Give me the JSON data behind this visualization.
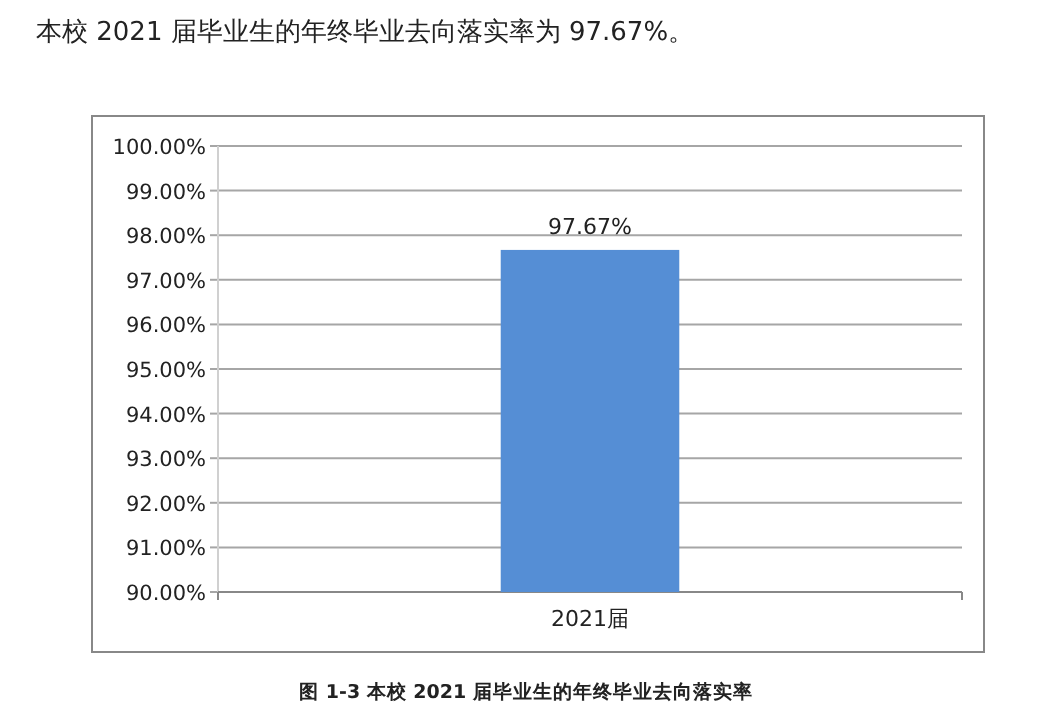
{
  "chart_data": {
    "type": "bar",
    "title": "图 1-3 本校 2021 届毕业生的年终毕业去向落实率",
    "annotations": [
      "本校 2021 届毕业生的年终毕业去向落实率为 97.67%。"
    ],
    "categories": [
      "2021届"
    ],
    "series": [
      {
        "color": "#558ed5",
        "values": [
          97.67
        ],
        "value_labels": [
          "97.67%"
        ]
      }
    ],
    "ylim": [
      90,
      100
    ],
    "yticks": [
      {
        "value": 90,
        "label": "90.00%"
      },
      {
        "value": 91,
        "label": "91.00%"
      },
      {
        "value": 92,
        "label": "92.00%"
      },
      {
        "value": 93,
        "label": "93.00%"
      },
      {
        "value": 94,
        "label": "94.00%"
      },
      {
        "value": 95,
        "label": "95.00%"
      },
      {
        "value": 96,
        "label": "96.00%"
      },
      {
        "value": 97,
        "label": "97.00%"
      },
      {
        "value": 98,
        "label": "98.00%"
      },
      {
        "value": 99,
        "label": "99.00%"
      },
      {
        "value": 100,
        "label": "100.00%"
      }
    ],
    "grid": "y"
  }
}
